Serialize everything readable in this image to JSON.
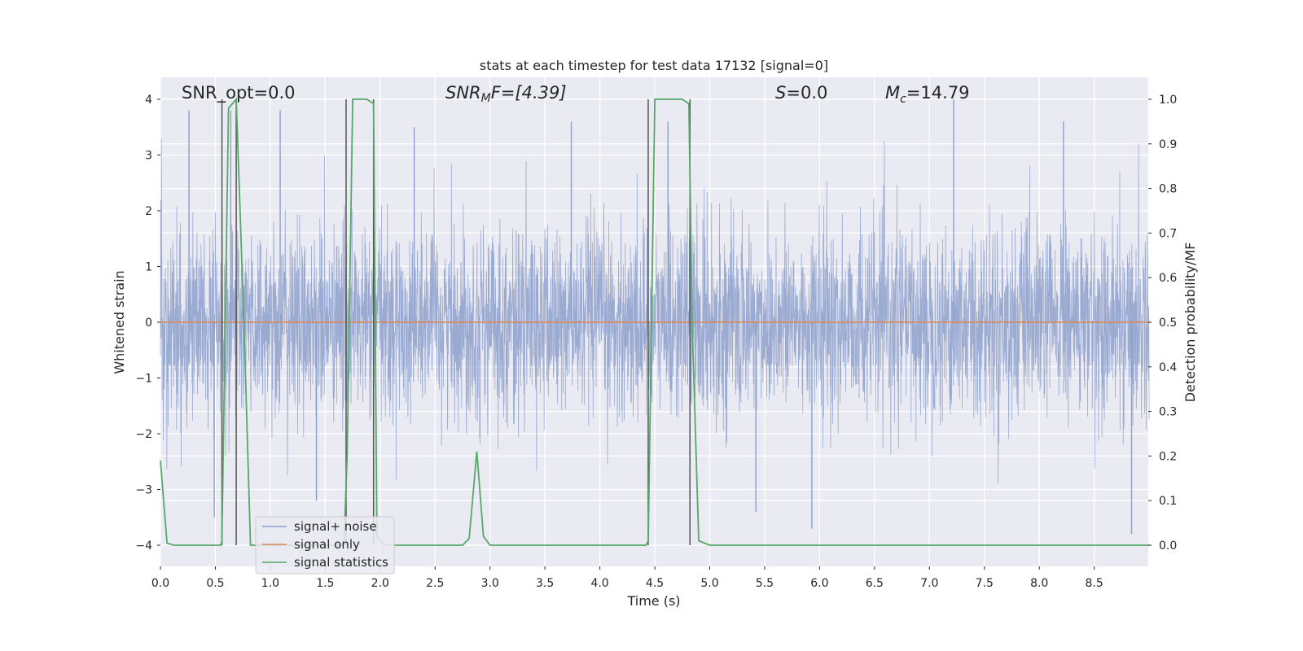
{
  "chart_data": {
    "type": "line",
    "title": "stats at each timestep for test data 17132 [signal=0]",
    "xlabel": "Time (s)",
    "ylabel": "Whitened strain",
    "ylabel_right": "Detection probability/MF",
    "xlim": [
      0.0,
      9.0
    ],
    "ylim": [
      -4.4,
      4.4
    ],
    "ylim_right": [
      -0.05,
      1.05
    ],
    "x_ticks": [
      "0.0",
      "0.5",
      "1.0",
      "1.5",
      "2.0",
      "2.5",
      "3.0",
      "3.5",
      "4.0",
      "4.5",
      "5.0",
      "5.5",
      "6.0",
      "6.5",
      "7.0",
      "7.5",
      "8.0",
      "8.5"
    ],
    "y_ticks_left": [
      "4",
      "3",
      "2",
      "1",
      "0",
      "−1",
      "−2",
      "−3",
      "−4"
    ],
    "y_ticks_right": [
      "1.0",
      "0.9",
      "0.8",
      "0.7",
      "0.6",
      "0.5",
      "0.4",
      "0.3",
      "0.2",
      "0.1",
      "0.0"
    ],
    "grid": true,
    "legend_position": "lower-left",
    "annotations": [
      {
        "kind": "plain",
        "text": "SNR_opt=0.0"
      },
      {
        "kind": "snrmf",
        "main": "SNR",
        "sub": "M",
        "rest": "F=[4.39]"
      },
      {
        "kind": "s",
        "main": "S",
        "rest": "=0.0"
      },
      {
        "kind": "mc",
        "main": "M",
        "sub": "c",
        "rest": "=14.79"
      }
    ],
    "series": [
      {
        "name": "signal+ noise",
        "color": "#8c9fcb",
        "style": "dense noise band, mostly within ±1.7, spikes to about ±3.8",
        "sample_extremes_x": [
          0.26,
          0.49,
          0.64,
          1.09,
          1.42,
          2.31,
          3.74,
          4.62,
          5.42,
          5.93,
          7.22,
          8.22,
          8.84
        ],
        "sample_extremes_y": [
          3.8,
          -3.5,
          3.8,
          3.8,
          -3.2,
          3.5,
          3.6,
          3.6,
          -3.4,
          -3.7,
          4.0,
          3.6,
          -3.8
        ]
      },
      {
        "name": "signal only",
        "color": "#dd8452",
        "x": [
          0.0,
          9.0
        ],
        "y": [
          0.0,
          0.0
        ]
      },
      {
        "name": "signal statistics",
        "color": "#55a868",
        "axis": "right",
        "x": [
          0.0,
          0.06,
          0.12,
          0.55,
          0.56,
          0.62,
          0.69,
          0.76,
          0.82,
          1.22,
          1.67,
          1.7,
          1.75,
          1.88,
          1.94,
          1.97,
          2.04,
          2.75,
          2.81,
          2.88,
          2.94,
          3.0,
          4.42,
          4.44,
          4.5,
          4.75,
          4.81,
          4.84,
          4.9,
          5.0,
          9.0
        ],
        "y": [
          0.19,
          0.005,
          0.0,
          0.0,
          0.01,
          0.98,
          1.0,
          0.5,
          0.0,
          0.0,
          0.0,
          0.2,
          1.0,
          1.0,
          0.99,
          0.02,
          0.0,
          0.0,
          0.015,
          0.21,
          0.02,
          0.0,
          0.0,
          0.01,
          1.0,
          1.0,
          0.99,
          0.5,
          0.01,
          0.0,
          0.0
        ]
      }
    ],
    "marker_lines_x": [
      0.56,
      0.69,
      1.69,
      1.94,
      4.44,
      4.82
    ],
    "marker_lines_color": "#555555"
  }
}
